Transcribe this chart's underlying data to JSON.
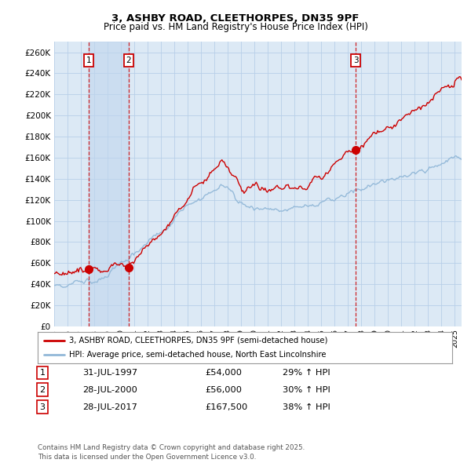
{
  "title1": "3, ASHBY ROAD, CLEETHORPES, DN35 9PF",
  "title2": "Price paid vs. HM Land Registry's House Price Index (HPI)",
  "legend1": "3, ASHBY ROAD, CLEETHORPES, DN35 9PF (semi-detached house)",
  "legend2": "HPI: Average price, semi-detached house, North East Lincolnshire",
  "transactions": [
    {
      "num": 1,
      "date": "31-JUL-1997",
      "year": 1997.58,
      "price": 54000,
      "hpi_pct": "29% ↑ HPI"
    },
    {
      "num": 2,
      "date": "28-JUL-2000",
      "year": 2000.58,
      "price": 56000,
      "hpi_pct": "30% ↑ HPI"
    },
    {
      "num": 3,
      "date": "28-JUL-2017",
      "year": 2017.58,
      "price": 167500,
      "hpi_pct": "38% ↑ HPI"
    }
  ],
  "footer": "Contains HM Land Registry data © Crown copyright and database right 2025.\nThis data is licensed under the Open Government Licence v3.0.",
  "background_color": "#dce9f5",
  "grid_color": "#b8cfe8",
  "line_color_red": "#cc0000",
  "line_color_blue": "#92b8d8",
  "ylim": [
    0,
    270000
  ],
  "yticks": [
    0,
    20000,
    40000,
    60000,
    80000,
    100000,
    120000,
    140000,
    160000,
    180000,
    200000,
    220000,
    240000,
    260000
  ],
  "xstart": 1995,
  "xend": 2025.5
}
